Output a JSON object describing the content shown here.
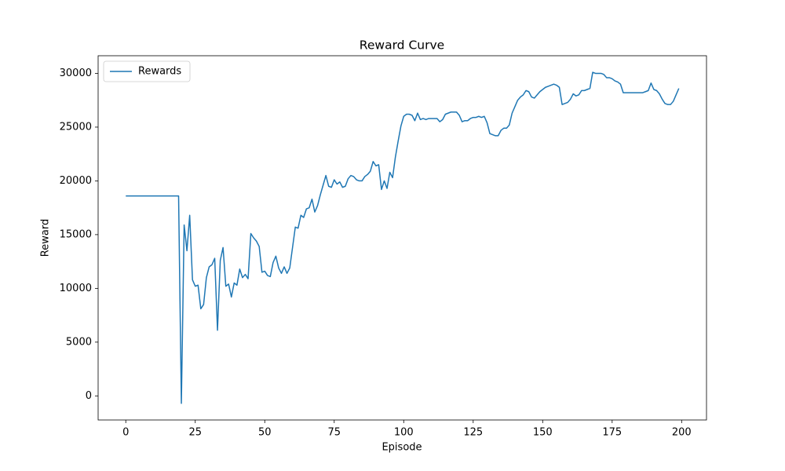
{
  "chart_data": {
    "type": "line",
    "title": "Reward Curve",
    "x_label": "Episode",
    "y_label": "Reward",
    "x": [
      0,
      1,
      2,
      3,
      4,
      5,
      6,
      7,
      8,
      9,
      10,
      11,
      12,
      13,
      14,
      15,
      16,
      17,
      18,
      19,
      20,
      21,
      22,
      23,
      24,
      25,
      26,
      27,
      28,
      29,
      30,
      31,
      32,
      33,
      34,
      35,
      36,
      37,
      38,
      39,
      40,
      41,
      42,
      43,
      44,
      45,
      46,
      47,
      48,
      49,
      50,
      51,
      52,
      53,
      54,
      55,
      56,
      57,
      58,
      59,
      60,
      61,
      62,
      63,
      64,
      65,
      66,
      67,
      68,
      69,
      70,
      71,
      72,
      73,
      74,
      75,
      76,
      77,
      78,
      79,
      80,
      81,
      82,
      83,
      84,
      85,
      86,
      87,
      88,
      89,
      90,
      91,
      92,
      93,
      94,
      95,
      96,
      97,
      98,
      99,
      100,
      101,
      102,
      103,
      104,
      105,
      106,
      107,
      108,
      109,
      110,
      111,
      112,
      113,
      114,
      115,
      116,
      117,
      118,
      119,
      120,
      121,
      122,
      123,
      124,
      125,
      126,
      127,
      128,
      129,
      130,
      131,
      132,
      133,
      134,
      135,
      136,
      137,
      138,
      139,
      140,
      141,
      142,
      143,
      144,
      145,
      146,
      147,
      148,
      149,
      150,
      151,
      152,
      153,
      154,
      155,
      156,
      157,
      158,
      159,
      160,
      161,
      162,
      163,
      164,
      165,
      166,
      167,
      168,
      169,
      170,
      171,
      172,
      173,
      174,
      175,
      176,
      177,
      178,
      179,
      180,
      181,
      182,
      183,
      184,
      185,
      186,
      187,
      188,
      189,
      190,
      191,
      192,
      193,
      194,
      195,
      196,
      197,
      198,
      199
    ],
    "series": [
      {
        "name": "Rewards",
        "color": "#1f77b4",
        "values": [
          18600,
          18600,
          18600,
          18600,
          18600,
          18600,
          18600,
          18600,
          18600,
          18600,
          18600,
          18600,
          18600,
          18600,
          18600,
          18600,
          18600,
          18600,
          18600,
          18600,
          -700,
          15900,
          13500,
          16800,
          10800,
          10200,
          10300,
          8100,
          8500,
          11000,
          12000,
          12200,
          12800,
          6100,
          12600,
          13800,
          10200,
          10400,
          9200,
          10500,
          10300,
          11800,
          11000,
          11300,
          10900,
          15100,
          14700,
          14400,
          13900,
          11500,
          11600,
          11200,
          11100,
          12400,
          13000,
          11900,
          11400,
          12000,
          11400,
          11900,
          13800,
          15700,
          15600,
          16800,
          16600,
          17400,
          17500,
          18300,
          17100,
          17700,
          18700,
          19600,
          20500,
          19500,
          19400,
          20100,
          19700,
          19900,
          19400,
          19500,
          20200,
          20500,
          20400,
          20100,
          20000,
          20000,
          20400,
          20600,
          20900,
          21800,
          21400,
          21500,
          19200,
          20000,
          19300,
          20800,
          20300,
          22200,
          23700,
          25100,
          26000,
          26200,
          26200,
          26100,
          25600,
          26300,
          25700,
          25800,
          25700,
          25800,
          25800,
          25800,
          25800,
          25500,
          25700,
          26200,
          26300,
          26400,
          26400,
          26400,
          26100,
          25500,
          25600,
          25600,
          25800,
          25900,
          25900,
          26000,
          25900,
          26000,
          25400,
          24400,
          24300,
          24200,
          24200,
          24700,
          24900,
          24900,
          25200,
          26300,
          26900,
          27500,
          27800,
          28000,
          28400,
          28300,
          27800,
          27700,
          28000,
          28300,
          28500,
          28700,
          28800,
          28900,
          29000,
          28900,
          28700,
          27100,
          27200,
          27300,
          27600,
          28100,
          27900,
          28000,
          28400,
          28400,
          28500,
          28600,
          30100,
          30000,
          30000,
          30000,
          29900,
          29600,
          29600,
          29500,
          29300,
          29200,
          29000,
          28200,
          28200,
          28200,
          28200,
          28200,
          28200,
          28200,
          28200,
          28300,
          28400,
          29100,
          28500,
          28400,
          28100,
          27600,
          27200,
          27100,
          27100,
          27400,
          28000,
          28600
        ]
      }
    ],
    "xlim": [
      -9.95,
      208.95
    ],
    "ylim": [
      -2240,
      31640
    ],
    "xticks": [
      0,
      25,
      50,
      75,
      100,
      125,
      150,
      175,
      200
    ],
    "yticks": [
      0,
      5000,
      10000,
      15000,
      20000,
      25000,
      30000
    ],
    "legend": "upper left",
    "grid": false
  }
}
